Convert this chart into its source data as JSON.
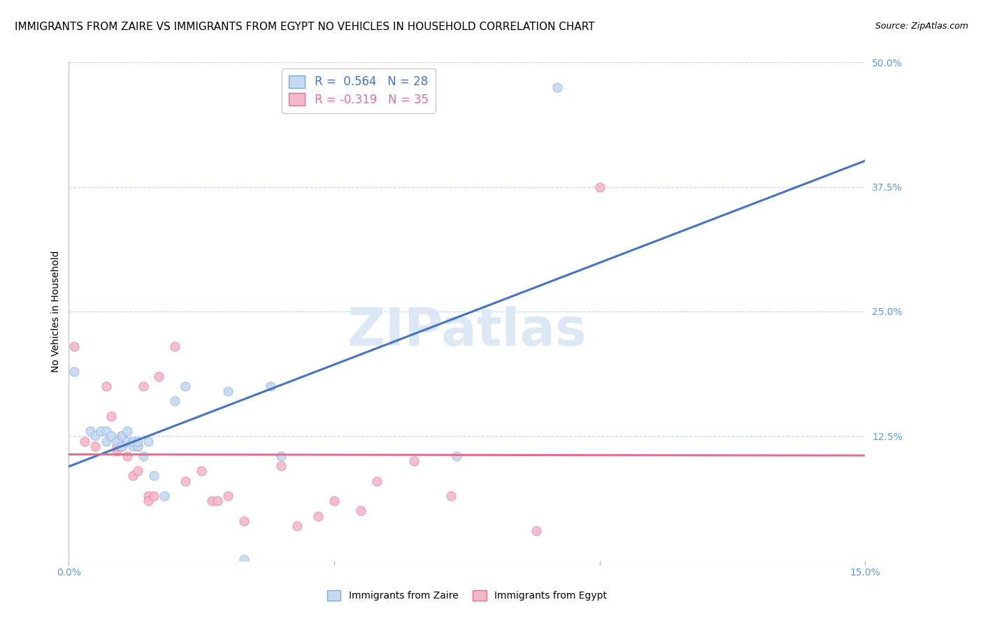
{
  "title": "IMMIGRANTS FROM ZAIRE VS IMMIGRANTS FROM EGYPT NO VEHICLES IN HOUSEHOLD CORRELATION CHART",
  "source": "Source: ZipAtlas.com",
  "ylabel": "No Vehicles in Household",
  "xlim": [
    0.0,
    0.15
  ],
  "ylim": [
    0.0,
    0.5
  ],
  "yticks_right": [
    0.0,
    0.125,
    0.25,
    0.375,
    0.5
  ],
  "yticklabels_right": [
    "",
    "12.5%",
    "25.0%",
    "37.5%",
    "50.0%"
  ],
  "zaire_R": 0.564,
  "zaire_N": 28,
  "egypt_R": -0.319,
  "egypt_N": 35,
  "color_zaire_fill": "#c5d9f1",
  "color_zaire_edge": "#7aabdb",
  "color_egypt_fill": "#f4b8c8",
  "color_egypt_edge": "#e07090",
  "color_line_zaire": "#4472c4",
  "color_line_egypt": "#e07090",
  "color_tick": "#5b9bd5",
  "zaire_scatter_x": [
    0.001,
    0.004,
    0.005,
    0.006,
    0.007,
    0.007,
    0.008,
    0.009,
    0.01,
    0.01,
    0.011,
    0.011,
    0.012,
    0.012,
    0.013,
    0.013,
    0.014,
    0.015,
    0.016,
    0.018,
    0.02,
    0.022,
    0.03,
    0.033,
    0.038,
    0.04,
    0.073,
    0.092
  ],
  "zaire_scatter_y": [
    0.19,
    0.13,
    0.125,
    0.13,
    0.12,
    0.13,
    0.125,
    0.12,
    0.125,
    0.115,
    0.12,
    0.13,
    0.115,
    0.12,
    0.115,
    0.12,
    0.105,
    0.12,
    0.085,
    0.065,
    0.16,
    0.175,
    0.17,
    0.001,
    0.175,
    0.105,
    0.105,
    0.475
  ],
  "egypt_scatter_x": [
    0.001,
    0.003,
    0.005,
    0.007,
    0.008,
    0.009,
    0.009,
    0.01,
    0.01,
    0.011,
    0.012,
    0.013,
    0.013,
    0.014,
    0.015,
    0.015,
    0.016,
    0.017,
    0.02,
    0.022,
    0.025,
    0.027,
    0.028,
    0.03,
    0.033,
    0.04,
    0.043,
    0.047,
    0.05,
    0.055,
    0.058,
    0.065,
    0.072,
    0.088,
    0.1
  ],
  "egypt_scatter_y": [
    0.215,
    0.12,
    0.115,
    0.175,
    0.145,
    0.11,
    0.115,
    0.115,
    0.125,
    0.105,
    0.085,
    0.09,
    0.115,
    0.175,
    0.065,
    0.06,
    0.065,
    0.185,
    0.215,
    0.08,
    0.09,
    0.06,
    0.06,
    0.065,
    0.04,
    0.095,
    0.035,
    0.045,
    0.06,
    0.05,
    0.08,
    0.1,
    0.065,
    0.03,
    0.375
  ],
  "background_color": "#ffffff",
  "grid_color": "#c8d8ec",
  "watermark_text": "ZIPatlas",
  "watermark_color": "#dce8f5",
  "title_fontsize": 11,
  "axis_fontsize": 10,
  "tick_fontsize": 10,
  "legend_fontsize": 11
}
